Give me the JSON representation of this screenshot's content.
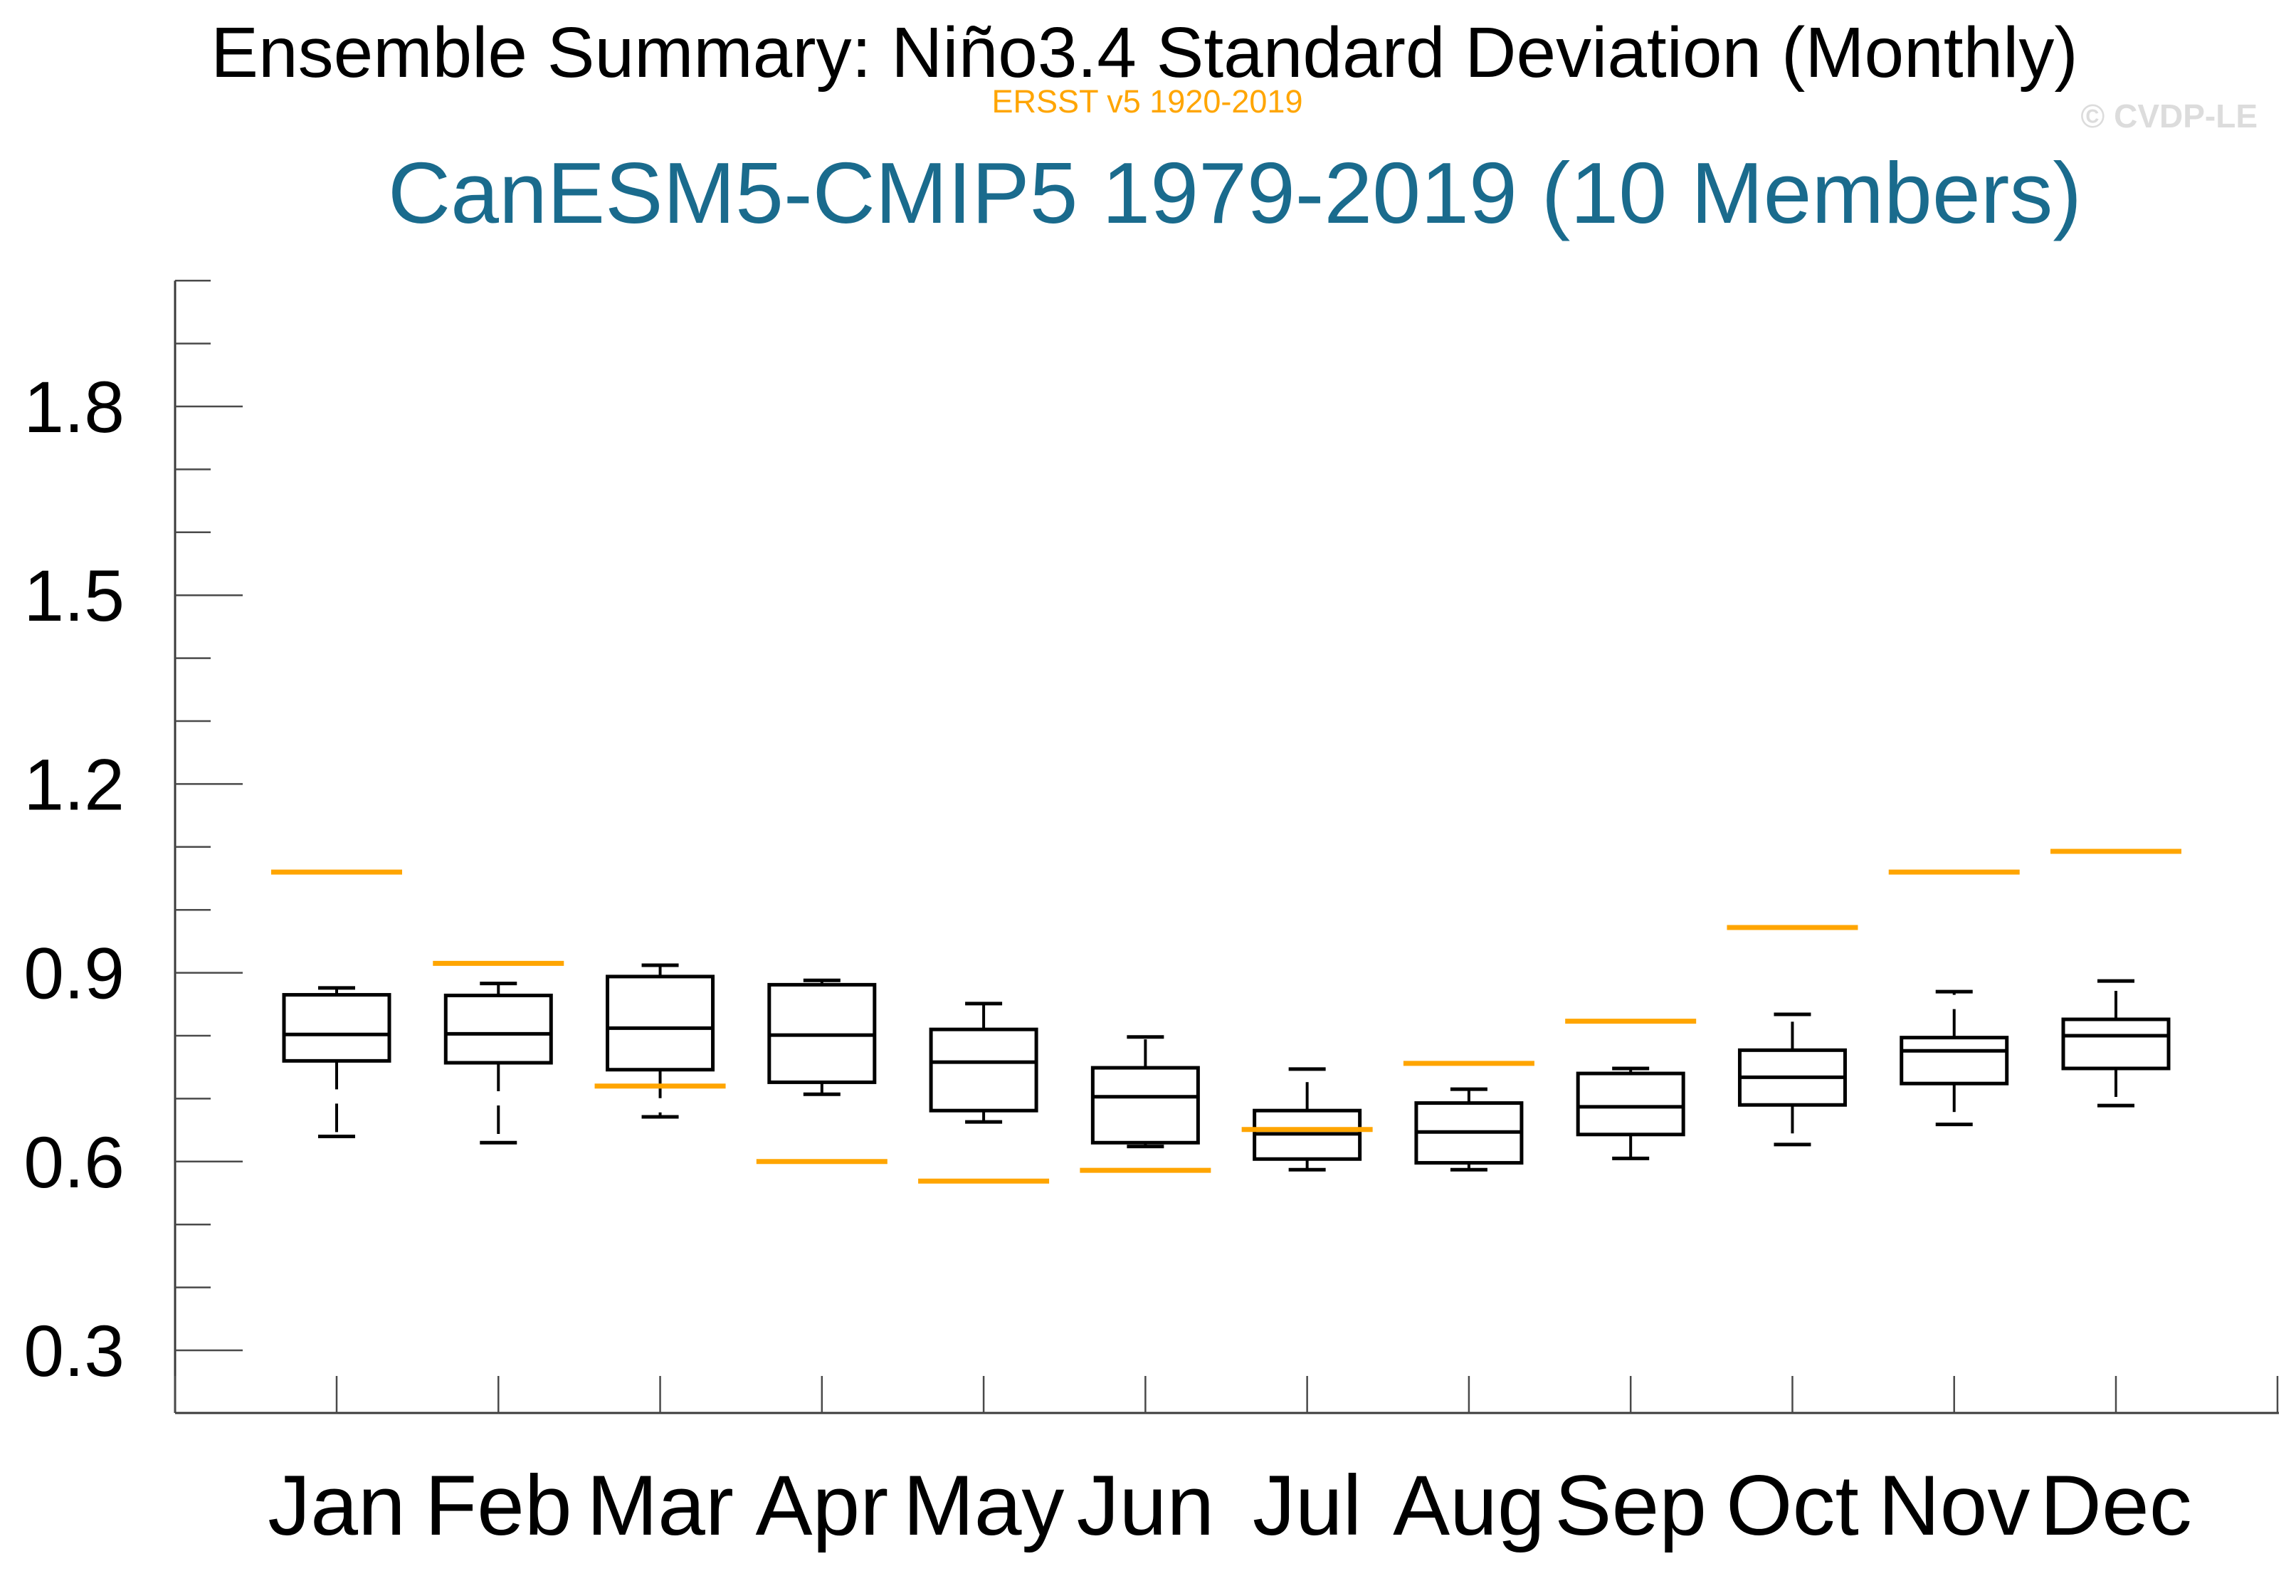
{
  "titles": {
    "main": "Ensemble Summary: Niño3.4 Standard Deviation (Monthly)",
    "subtitle": "ERSST v5 1920-2019",
    "model": "CanESM5-CMIP5 1979-2019 (10 Members)",
    "watermark": "© CVDP-LE"
  },
  "colors": {
    "observation_orange": "#FFA500",
    "model_title_teal": "#1A6B8D",
    "watermark_gray": "#DCDCDC",
    "box_black": "#000000",
    "axis_gray": "#3a3a3a",
    "tick_gray": "#4a4a4a"
  },
  "chart_data": {
    "type": "boxplot",
    "title": "Ensemble Summary: Niño3.4 Standard Deviation (Monthly)",
    "subtitle": "ERSST v5 1920-2019",
    "model_label": "CanESM5-CMIP5 1979-2019 (10 Members)",
    "xlabel": "",
    "ylabel": "",
    "ylim": [
      0.2,
      2.0
    ],
    "grid": false,
    "legend": "none",
    "ytick_labels": [
      "0.3",
      "0.6",
      "0.9",
      "1.2",
      "1.5",
      "1.8"
    ],
    "ytick_major_values": [
      0.3,
      0.6,
      0.9,
      1.2,
      1.5,
      1.8
    ],
    "ytick_minor_values": [
      0.4,
      0.5,
      0.7,
      0.8,
      1.0,
      1.1,
      1.3,
      1.4,
      1.6,
      1.7,
      1.9,
      2.0
    ],
    "categories": [
      "Jan",
      "Feb",
      "Mar",
      "Apr",
      "May",
      "Jun",
      "Jul",
      "Aug",
      "Sep",
      "Oct",
      "Nov",
      "Dec"
    ],
    "series": [
      {
        "name": "CanESM5-CMIP5 1979-2019 ensemble spread (10 members)",
        "type": "box",
        "boxes": [
          {
            "month": "Jan",
            "whisker_low": 0.64,
            "q1": 0.76,
            "median": 0.802,
            "q3": 0.865,
            "whisker_high": 0.876
          },
          {
            "month": "Feb",
            "whisker_low": 0.63,
            "q1": 0.757,
            "median": 0.803,
            "q3": 0.864,
            "whisker_high": 0.883
          },
          {
            "month": "Mar",
            "whisker_low": 0.671,
            "q1": 0.746,
            "median": 0.812,
            "q3": 0.894,
            "whisker_high": 0.912
          },
          {
            "month": "Apr",
            "whisker_low": 0.707,
            "q1": 0.726,
            "median": 0.801,
            "q3": 0.881,
            "whisker_high": 0.888
          },
          {
            "month": "May",
            "whisker_low": 0.663,
            "q1": 0.681,
            "median": 0.758,
            "q3": 0.81,
            "whisker_high": 0.851
          },
          {
            "month": "Jun",
            "whisker_low": 0.624,
            "q1": 0.63,
            "median": 0.703,
            "q3": 0.749,
            "whisker_high": 0.798
          },
          {
            "month": "Jul",
            "whisker_low": 0.587,
            "q1": 0.604,
            "median": 0.644,
            "q3": 0.681,
            "whisker_high": 0.747
          },
          {
            "month": "Aug",
            "whisker_low": 0.587,
            "q1": 0.598,
            "median": 0.647,
            "q3": 0.693,
            "whisker_high": 0.715
          },
          {
            "month": "Sep",
            "whisker_low": 0.605,
            "q1": 0.643,
            "median": 0.687,
            "q3": 0.74,
            "whisker_high": 0.748
          },
          {
            "month": "Oct",
            "whisker_low": 0.627,
            "q1": 0.69,
            "median": 0.734,
            "q3": 0.777,
            "whisker_high": 0.834
          },
          {
            "month": "Nov",
            "whisker_low": 0.659,
            "q1": 0.724,
            "median": 0.776,
            "q3": 0.797,
            "whisker_high": 0.87
          },
          {
            "month": "Dec",
            "whisker_low": 0.689,
            "q1": 0.748,
            "median": 0.8,
            "q3": 0.826,
            "whisker_high": 0.887
          }
        ]
      },
      {
        "name": "ERSST v5 1920-2019 observed (orange reference lines)",
        "type": "reference-line",
        "values": [
          1.06,
          0.915,
          0.72,
          0.6,
          0.569,
          0.586,
          0.651,
          0.756,
          0.823,
          0.972,
          1.06,
          1.093
        ]
      }
    ]
  }
}
